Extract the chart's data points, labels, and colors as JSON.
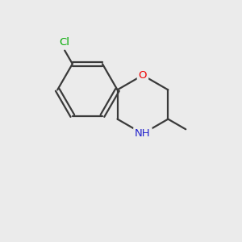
{
  "bg_color": "#ebebeb",
  "bond_color": "#3a3a3a",
  "bond_width": 1.6,
  "atom_colors": {
    "Cl": "#00aa00",
    "O": "#ee0000",
    "N": "#2222cc",
    "C": "#3a3a3a"
  },
  "figsize": [
    3.0,
    3.0
  ],
  "dpi": 100
}
